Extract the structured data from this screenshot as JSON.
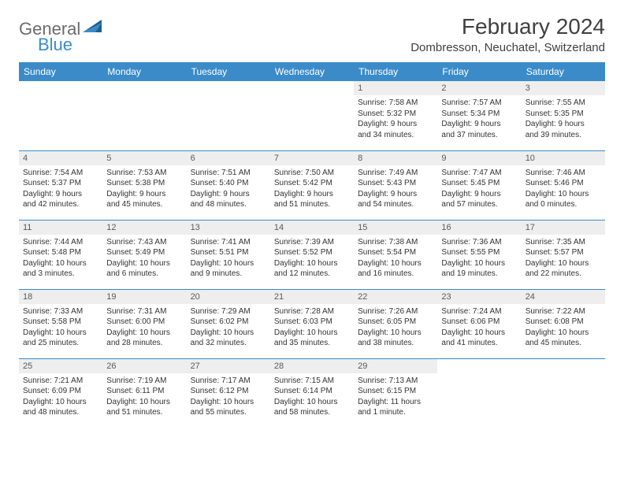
{
  "colors": {
    "header_bg": "#3b8bc9",
    "header_text": "#ffffff",
    "daynum_bg": "#eeeeee",
    "daynum_text": "#5a5a5a",
    "body_text": "#333333",
    "border": "#3b8bc9",
    "logo_gray": "#6b6b6b",
    "logo_blue": "#3b8bc9",
    "title_text": "#404040"
  },
  "logo": {
    "part1": "General",
    "part2": "Blue"
  },
  "title": "February 2024",
  "location": "Dombresson, Neuchatel, Switzerland",
  "weekdays": [
    "Sunday",
    "Monday",
    "Tuesday",
    "Wednesday",
    "Thursday",
    "Friday",
    "Saturday"
  ],
  "weeks": [
    [
      {
        "empty": true
      },
      {
        "empty": true
      },
      {
        "empty": true
      },
      {
        "empty": true
      },
      {
        "num": "1",
        "sunrise": "Sunrise: 7:58 AM",
        "sunset": "Sunset: 5:32 PM",
        "daylight1": "Daylight: 9 hours",
        "daylight2": "and 34 minutes."
      },
      {
        "num": "2",
        "sunrise": "Sunrise: 7:57 AM",
        "sunset": "Sunset: 5:34 PM",
        "daylight1": "Daylight: 9 hours",
        "daylight2": "and 37 minutes."
      },
      {
        "num": "3",
        "sunrise": "Sunrise: 7:55 AM",
        "sunset": "Sunset: 5:35 PM",
        "daylight1": "Daylight: 9 hours",
        "daylight2": "and 39 minutes."
      }
    ],
    [
      {
        "num": "4",
        "sunrise": "Sunrise: 7:54 AM",
        "sunset": "Sunset: 5:37 PM",
        "daylight1": "Daylight: 9 hours",
        "daylight2": "and 42 minutes."
      },
      {
        "num": "5",
        "sunrise": "Sunrise: 7:53 AM",
        "sunset": "Sunset: 5:38 PM",
        "daylight1": "Daylight: 9 hours",
        "daylight2": "and 45 minutes."
      },
      {
        "num": "6",
        "sunrise": "Sunrise: 7:51 AM",
        "sunset": "Sunset: 5:40 PM",
        "daylight1": "Daylight: 9 hours",
        "daylight2": "and 48 minutes."
      },
      {
        "num": "7",
        "sunrise": "Sunrise: 7:50 AM",
        "sunset": "Sunset: 5:42 PM",
        "daylight1": "Daylight: 9 hours",
        "daylight2": "and 51 minutes."
      },
      {
        "num": "8",
        "sunrise": "Sunrise: 7:49 AM",
        "sunset": "Sunset: 5:43 PM",
        "daylight1": "Daylight: 9 hours",
        "daylight2": "and 54 minutes."
      },
      {
        "num": "9",
        "sunrise": "Sunrise: 7:47 AM",
        "sunset": "Sunset: 5:45 PM",
        "daylight1": "Daylight: 9 hours",
        "daylight2": "and 57 minutes."
      },
      {
        "num": "10",
        "sunrise": "Sunrise: 7:46 AM",
        "sunset": "Sunset: 5:46 PM",
        "daylight1": "Daylight: 10 hours",
        "daylight2": "and 0 minutes."
      }
    ],
    [
      {
        "num": "11",
        "sunrise": "Sunrise: 7:44 AM",
        "sunset": "Sunset: 5:48 PM",
        "daylight1": "Daylight: 10 hours",
        "daylight2": "and 3 minutes."
      },
      {
        "num": "12",
        "sunrise": "Sunrise: 7:43 AM",
        "sunset": "Sunset: 5:49 PM",
        "daylight1": "Daylight: 10 hours",
        "daylight2": "and 6 minutes."
      },
      {
        "num": "13",
        "sunrise": "Sunrise: 7:41 AM",
        "sunset": "Sunset: 5:51 PM",
        "daylight1": "Daylight: 10 hours",
        "daylight2": "and 9 minutes."
      },
      {
        "num": "14",
        "sunrise": "Sunrise: 7:39 AM",
        "sunset": "Sunset: 5:52 PM",
        "daylight1": "Daylight: 10 hours",
        "daylight2": "and 12 minutes."
      },
      {
        "num": "15",
        "sunrise": "Sunrise: 7:38 AM",
        "sunset": "Sunset: 5:54 PM",
        "daylight1": "Daylight: 10 hours",
        "daylight2": "and 16 minutes."
      },
      {
        "num": "16",
        "sunrise": "Sunrise: 7:36 AM",
        "sunset": "Sunset: 5:55 PM",
        "daylight1": "Daylight: 10 hours",
        "daylight2": "and 19 minutes."
      },
      {
        "num": "17",
        "sunrise": "Sunrise: 7:35 AM",
        "sunset": "Sunset: 5:57 PM",
        "daylight1": "Daylight: 10 hours",
        "daylight2": "and 22 minutes."
      }
    ],
    [
      {
        "num": "18",
        "sunrise": "Sunrise: 7:33 AM",
        "sunset": "Sunset: 5:58 PM",
        "daylight1": "Daylight: 10 hours",
        "daylight2": "and 25 minutes."
      },
      {
        "num": "19",
        "sunrise": "Sunrise: 7:31 AM",
        "sunset": "Sunset: 6:00 PM",
        "daylight1": "Daylight: 10 hours",
        "daylight2": "and 28 minutes."
      },
      {
        "num": "20",
        "sunrise": "Sunrise: 7:29 AM",
        "sunset": "Sunset: 6:02 PM",
        "daylight1": "Daylight: 10 hours",
        "daylight2": "and 32 minutes."
      },
      {
        "num": "21",
        "sunrise": "Sunrise: 7:28 AM",
        "sunset": "Sunset: 6:03 PM",
        "daylight1": "Daylight: 10 hours",
        "daylight2": "and 35 minutes."
      },
      {
        "num": "22",
        "sunrise": "Sunrise: 7:26 AM",
        "sunset": "Sunset: 6:05 PM",
        "daylight1": "Daylight: 10 hours",
        "daylight2": "and 38 minutes."
      },
      {
        "num": "23",
        "sunrise": "Sunrise: 7:24 AM",
        "sunset": "Sunset: 6:06 PM",
        "daylight1": "Daylight: 10 hours",
        "daylight2": "and 41 minutes."
      },
      {
        "num": "24",
        "sunrise": "Sunrise: 7:22 AM",
        "sunset": "Sunset: 6:08 PM",
        "daylight1": "Daylight: 10 hours",
        "daylight2": "and 45 minutes."
      }
    ],
    [
      {
        "num": "25",
        "sunrise": "Sunrise: 7:21 AM",
        "sunset": "Sunset: 6:09 PM",
        "daylight1": "Daylight: 10 hours",
        "daylight2": "and 48 minutes."
      },
      {
        "num": "26",
        "sunrise": "Sunrise: 7:19 AM",
        "sunset": "Sunset: 6:11 PM",
        "daylight1": "Daylight: 10 hours",
        "daylight2": "and 51 minutes."
      },
      {
        "num": "27",
        "sunrise": "Sunrise: 7:17 AM",
        "sunset": "Sunset: 6:12 PM",
        "daylight1": "Daylight: 10 hours",
        "daylight2": "and 55 minutes."
      },
      {
        "num": "28",
        "sunrise": "Sunrise: 7:15 AM",
        "sunset": "Sunset: 6:14 PM",
        "daylight1": "Daylight: 10 hours",
        "daylight2": "and 58 minutes."
      },
      {
        "num": "29",
        "sunrise": "Sunrise: 7:13 AM",
        "sunset": "Sunset: 6:15 PM",
        "daylight1": "Daylight: 11 hours",
        "daylight2": "and 1 minute."
      },
      {
        "empty": true
      },
      {
        "empty": true
      }
    ]
  ]
}
